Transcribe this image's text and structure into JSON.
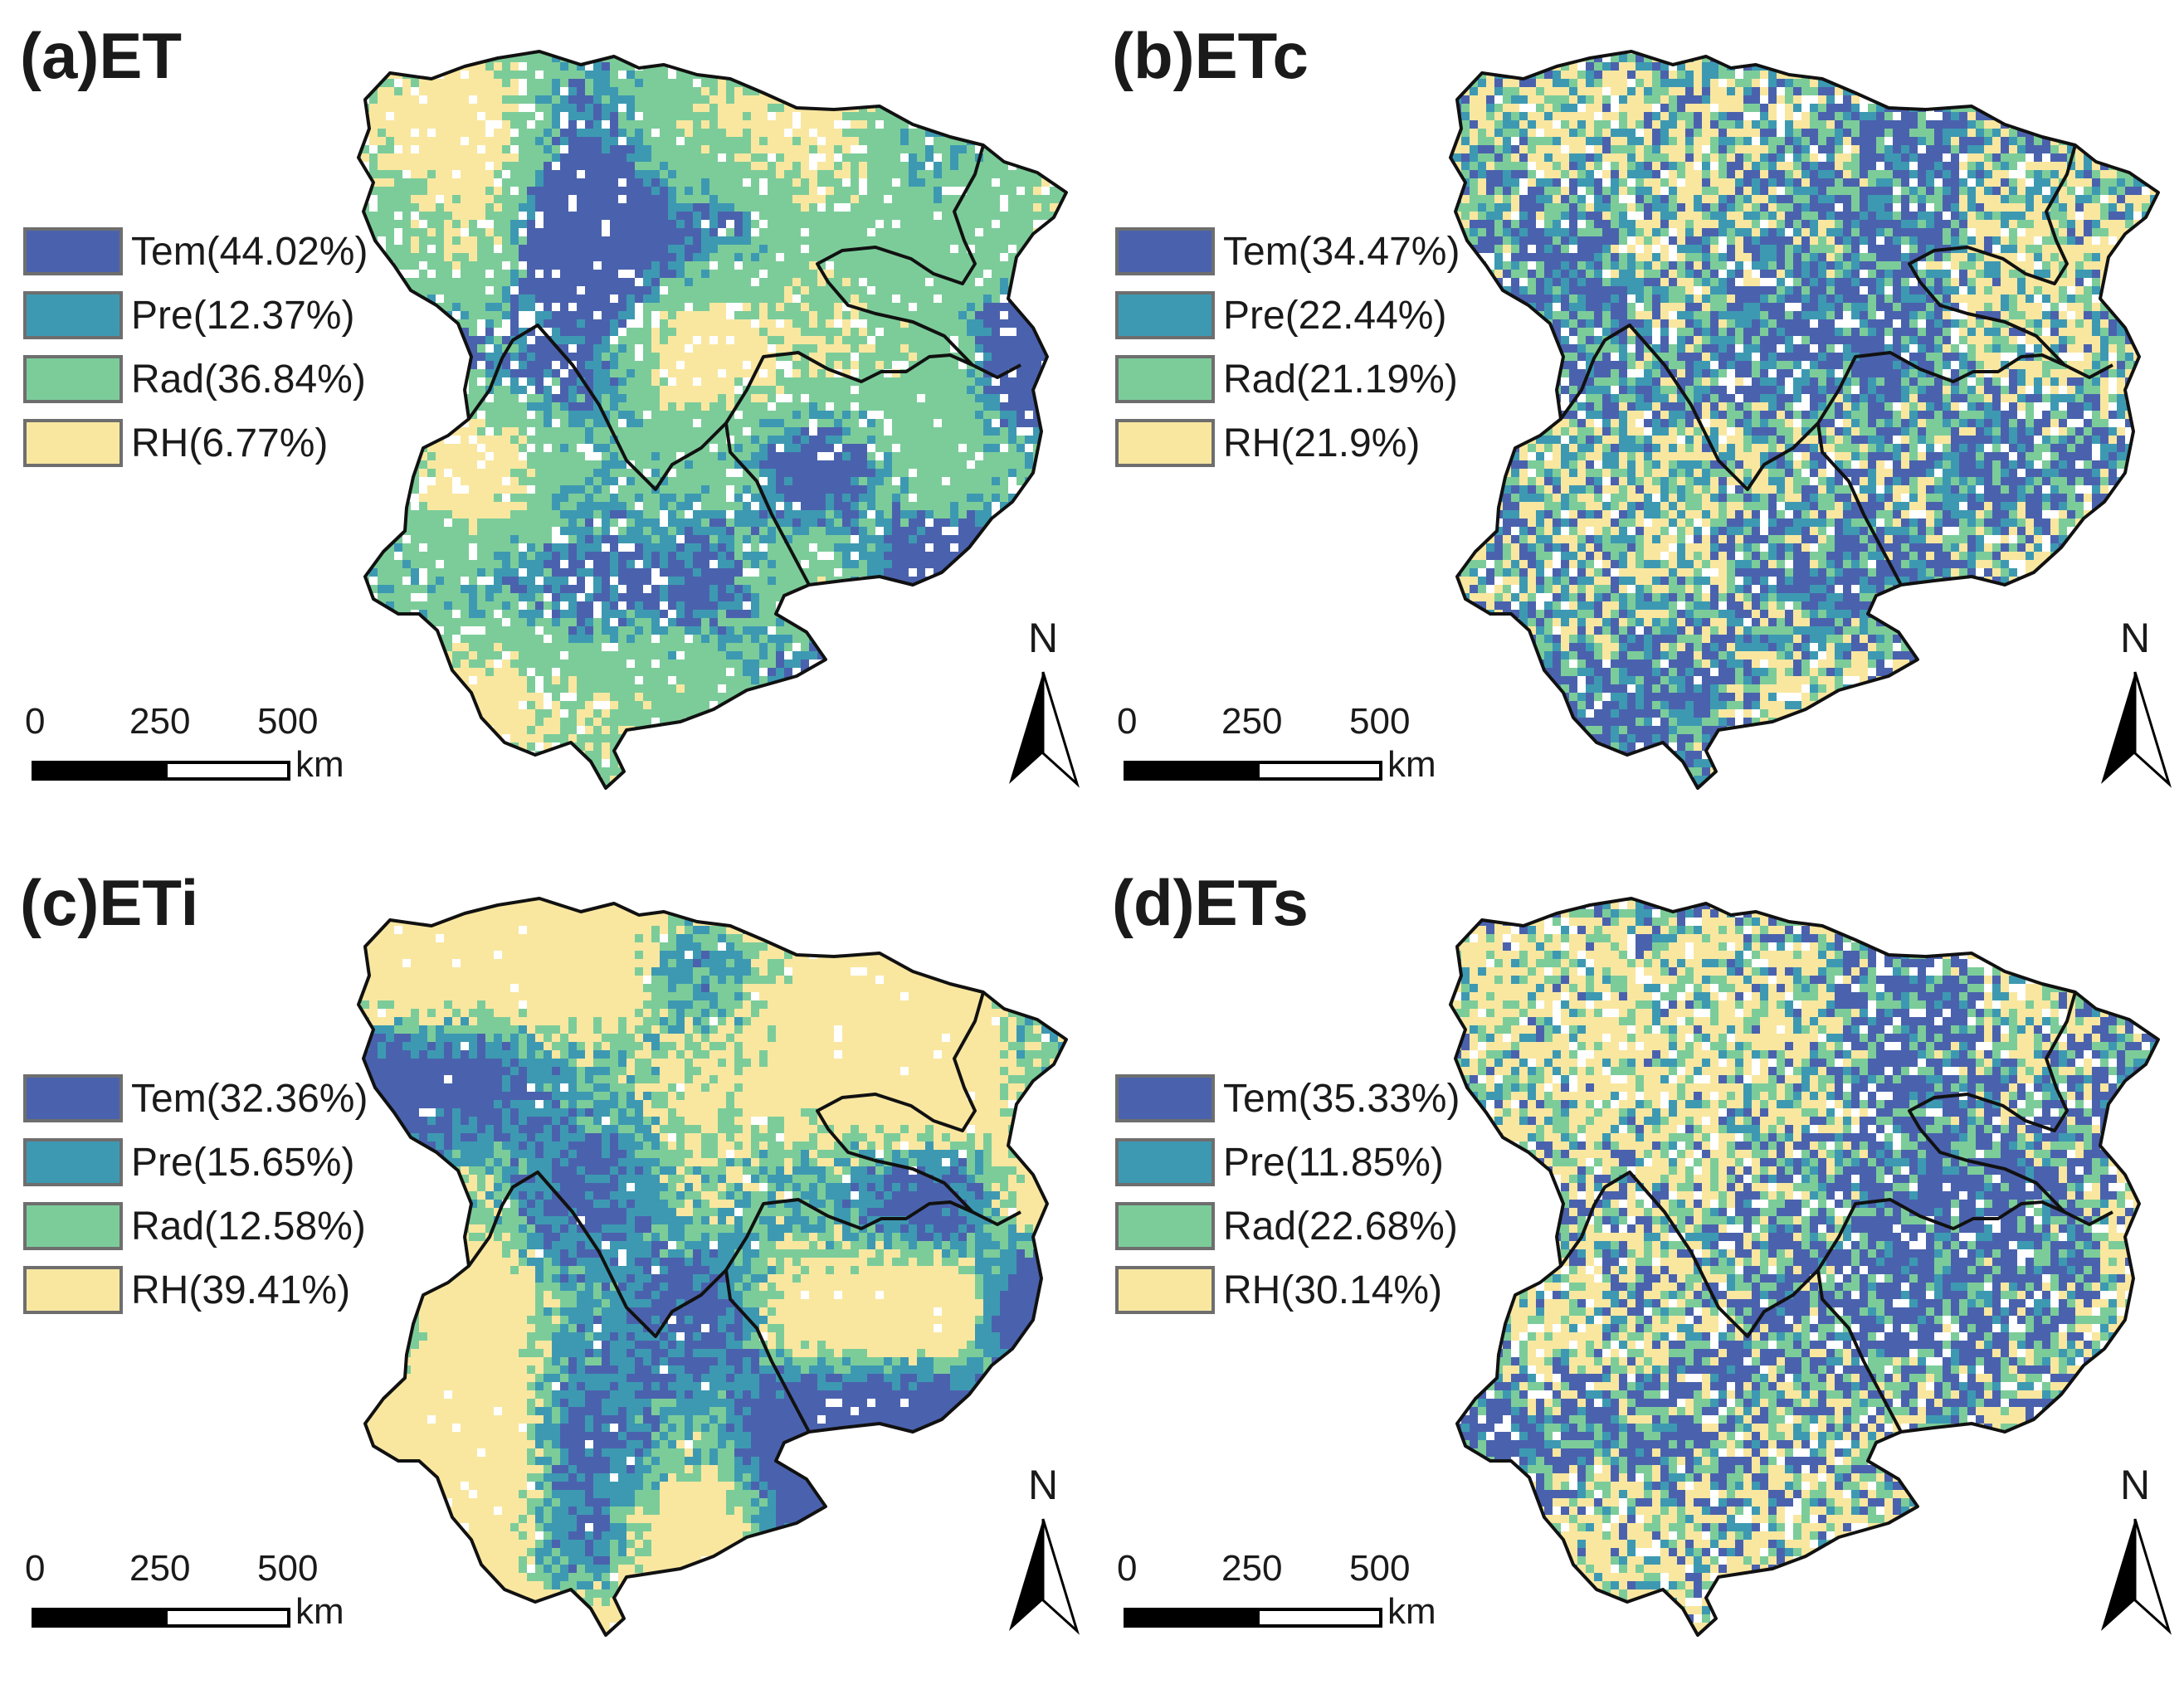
{
  "colors": {
    "tem": "#4a62ad",
    "pre": "#3d99b2",
    "rad": "#7ccc9a",
    "rh": "#f9e7a0",
    "boundary": "#111111"
  },
  "panels": [
    {
      "title": "(a)ET",
      "legend": [
        {
          "key": "tem",
          "label": "Tem(44.02%)",
          "share": 44.02
        },
        {
          "key": "pre",
          "label": "Pre(12.37%)",
          "share": 12.37
        },
        {
          "key": "rad",
          "label": "Rad(36.84%)",
          "share": 36.84
        },
        {
          "key": "rh",
          "label": "RH(6.77%)",
          "share": 6.77
        }
      ]
    },
    {
      "title": "(b)ETc",
      "legend": [
        {
          "key": "tem",
          "label": "Tem(34.47%)",
          "share": 34.47
        },
        {
          "key": "pre",
          "label": "Pre(22.44%)",
          "share": 22.44
        },
        {
          "key": "rad",
          "label": "Rad(21.19%)",
          "share": 21.19
        },
        {
          "key": "rh",
          "label": "RH(21.9%)",
          "share": 21.9
        }
      ]
    },
    {
      "title": "(c)ETi",
      "legend": [
        {
          "key": "tem",
          "label": "Tem(32.36%)",
          "share": 32.36
        },
        {
          "key": "pre",
          "label": "Pre(15.65%)",
          "share": 15.65
        },
        {
          "key": "rad",
          "label": "Rad(12.58%)",
          "share": 12.58
        },
        {
          "key": "rh",
          "label": "RH(39.41%)",
          "share": 39.41
        }
      ]
    },
    {
      "title": "(d)ETs",
      "legend": [
        {
          "key": "tem",
          "label": "Tem(35.33%)",
          "share": 35.33
        },
        {
          "key": "pre",
          "label": "Pre(11.85%)",
          "share": 11.85
        },
        {
          "key": "rad",
          "label": "Rad(22.68%)",
          "share": 22.68
        },
        {
          "key": "rh",
          "label": "RH(30.14%)",
          "share": 30.14
        }
      ]
    }
  ],
  "scale": {
    "ticks": [
      "0",
      "250",
      "500"
    ],
    "unit": "km"
  },
  "north_arrow": {
    "label": "N"
  }
}
